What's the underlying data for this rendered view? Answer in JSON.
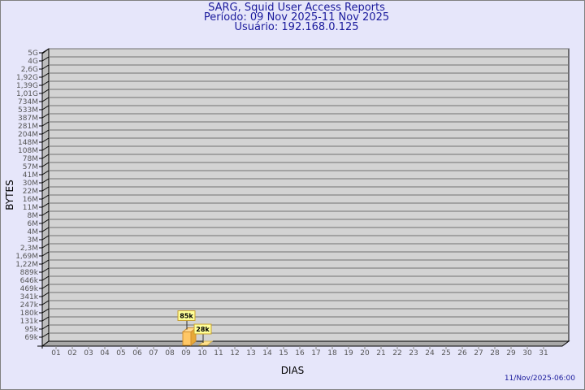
{
  "header": {
    "title": "SARG, Squid User Access Reports",
    "period": "Período: 09 Nov 2025-11 Nov 2025",
    "user": "Usuário: 192.168.0.125"
  },
  "timestamp": "11/Nov/2025-06:00",
  "colors": {
    "background": "#e6e6fa",
    "plot": "#d3d3d3",
    "bar": "#ffc766",
    "label_bg": "#ffff99",
    "title": "#1a1a9c"
  },
  "chart_data": {
    "type": "bar",
    "xlabel": "DIAS",
    "ylabel": "BYTES",
    "yscale": "log",
    "grid": true,
    "categories": [
      "01",
      "02",
      "03",
      "04",
      "05",
      "06",
      "07",
      "08",
      "09",
      "10",
      "11",
      "12",
      "13",
      "14",
      "15",
      "16",
      "17",
      "18",
      "19",
      "20",
      "21",
      "22",
      "23",
      "24",
      "25",
      "26",
      "27",
      "28",
      "29",
      "30",
      "31"
    ],
    "y_ticks": [
      "5G",
      "4G",
      "2,6G",
      "1,92G",
      "1,39G",
      "1,01G",
      "734M",
      "533M",
      "387M",
      "281M",
      "204M",
      "148M",
      "108M",
      "78M",
      "57M",
      "41M",
      "30M",
      "22M",
      "16M",
      "11M",
      "8M",
      "6M",
      "4M",
      "3M",
      "2,3M",
      "1,69M",
      "1,22M",
      "889k",
      "646k",
      "469k",
      "341k",
      "247k",
      "180k",
      "131k",
      "95k",
      "69k"
    ],
    "bars": [
      {
        "day": "09",
        "value": 85000,
        "label": "85k"
      },
      {
        "day": "10",
        "value": 28000,
        "label": "28k"
      }
    ]
  }
}
